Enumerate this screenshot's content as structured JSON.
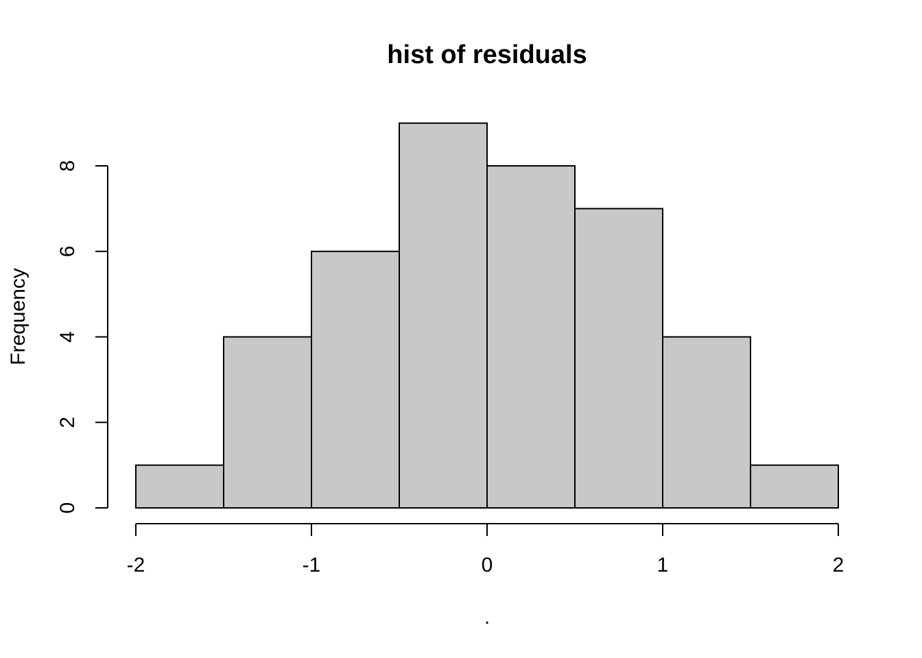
{
  "chart_data": {
    "type": "bar",
    "title": "hist of residuals",
    "xlabel": ".",
    "ylabel": "Frequency",
    "bins": [
      {
        "start": -2.0,
        "end": -1.5,
        "count": 1
      },
      {
        "start": -1.5,
        "end": -1.0,
        "count": 4
      },
      {
        "start": -1.0,
        "end": -0.5,
        "count": 6
      },
      {
        "start": -0.5,
        "end": 0.0,
        "count": 9
      },
      {
        "start": 0.0,
        "end": 0.5,
        "count": 8
      },
      {
        "start": 0.5,
        "end": 1.0,
        "count": 7
      },
      {
        "start": 1.0,
        "end": 1.5,
        "count": 4
      },
      {
        "start": 1.5,
        "end": 2.0,
        "count": 1
      }
    ],
    "x_ticks": [
      "-2",
      "-1",
      "0",
      "1",
      "2"
    ],
    "y_ticks": [
      "0",
      "2",
      "4",
      "6",
      "8"
    ],
    "xlim": [
      -2,
      2
    ],
    "ylim": [
      0,
      8
    ],
    "bar_color": "#c8c8c8",
    "grid": false,
    "legend": "none"
  }
}
